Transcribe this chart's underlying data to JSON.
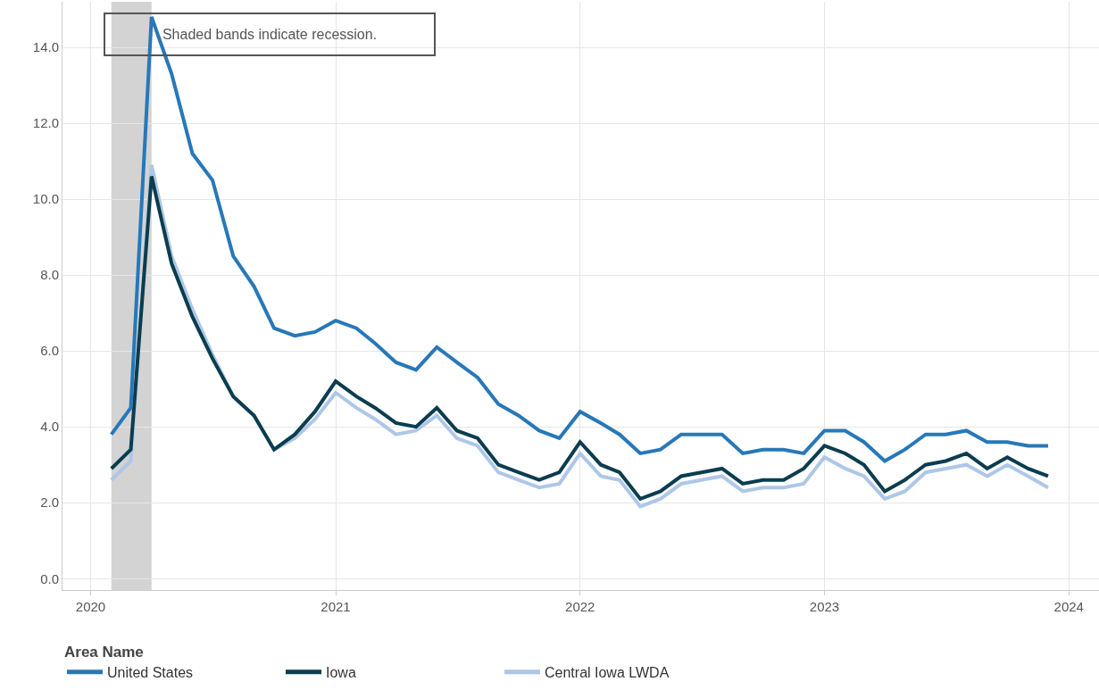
{
  "chart_data": {
    "type": "line",
    "x": [
      "2020-02",
      "2020-03",
      "2020-04",
      "2020-05",
      "2020-06",
      "2020-07",
      "2020-08",
      "2020-09",
      "2020-10",
      "2020-11",
      "2020-12",
      "2021-01",
      "2021-02",
      "2021-03",
      "2021-04",
      "2021-05",
      "2021-06",
      "2021-07",
      "2021-08",
      "2021-09",
      "2021-10",
      "2021-11",
      "2021-12",
      "2022-01",
      "2022-02",
      "2022-03",
      "2022-04",
      "2022-05",
      "2022-06",
      "2022-07",
      "2022-08",
      "2022-09",
      "2022-10",
      "2022-11",
      "2022-12",
      "2023-01",
      "2023-02",
      "2023-03",
      "2023-04",
      "2023-05",
      "2023-06",
      "2023-07",
      "2023-08",
      "2023-09",
      "2023-10",
      "2023-11",
      "2023-12"
    ],
    "series": [
      {
        "name": "United States",
        "color": "#2778b8",
        "values": [
          3.8,
          4.5,
          14.8,
          13.3,
          11.2,
          10.5,
          8.5,
          7.7,
          6.6,
          6.4,
          6.5,
          6.8,
          6.6,
          6.2,
          5.7,
          5.5,
          6.1,
          5.7,
          5.3,
          4.6,
          4.3,
          3.9,
          3.7,
          4.4,
          4.1,
          3.8,
          3.3,
          3.4,
          3.8,
          3.8,
          3.8,
          3.3,
          3.4,
          3.4,
          3.3,
          3.9,
          3.9,
          3.6,
          3.1,
          3.4,
          3.8,
          3.8,
          3.9,
          3.6,
          3.6,
          3.5,
          3.5
        ]
      },
      {
        "name": "Iowa",
        "color": "#0b3d4f",
        "values": [
          2.9,
          3.4,
          10.6,
          8.3,
          6.9,
          5.8,
          4.8,
          4.3,
          3.4,
          3.8,
          4.4,
          5.2,
          4.8,
          4.5,
          4.1,
          4.0,
          4.5,
          3.9,
          3.7,
          3.0,
          2.8,
          2.6,
          2.8,
          3.6,
          3.0,
          2.8,
          2.1,
          2.3,
          2.7,
          2.8,
          2.9,
          2.5,
          2.6,
          2.6,
          2.9,
          3.5,
          3.3,
          3.0,
          2.3,
          2.6,
          3.0,
          3.1,
          3.3,
          2.9,
          3.2,
          2.9,
          2.7
        ]
      },
      {
        "name": "Central Iowa LWDA",
        "color": "#aec7e8",
        "values": [
          2.6,
          3.1,
          10.9,
          8.5,
          7.1,
          5.9,
          4.8,
          4.3,
          3.4,
          3.7,
          4.2,
          4.9,
          4.5,
          4.2,
          3.8,
          3.9,
          4.3,
          3.7,
          3.5,
          2.8,
          2.6,
          2.4,
          2.5,
          3.3,
          2.7,
          2.6,
          1.9,
          2.1,
          2.5,
          2.6,
          2.7,
          2.3,
          2.4,
          2.4,
          2.5,
          3.2,
          2.9,
          2.7,
          2.1,
          2.3,
          2.8,
          2.9,
          3.0,
          2.7,
          3.0,
          2.7,
          2.4
        ]
      }
    ],
    "legend_title": "Area Name",
    "legend": "bottom left",
    "annotations": [
      "Shaded bands indicate recession."
    ],
    "bands": [
      {
        "axis": "x",
        "from": "2020-02-01",
        "to": "2020-04-01",
        "color": "#d3d3d3"
      }
    ],
    "xlim": [
      "2019-11-20",
      "2024-02-15"
    ],
    "xticks": [
      {
        "value": "2020",
        "label": "2020"
      },
      {
        "value": "2021",
        "label": "2021"
      },
      {
        "value": "2022",
        "label": "2022"
      },
      {
        "value": "2023",
        "label": "2023"
      },
      {
        "value": "2024",
        "label": "2024"
      }
    ],
    "ylim": [
      -0.3,
      15.2
    ],
    "yticks": [
      {
        "value": 0,
        "label": "0.0"
      },
      {
        "value": 2,
        "label": "2.0"
      },
      {
        "value": 4,
        "label": "4.0"
      },
      {
        "value": 6,
        "label": "6.0"
      },
      {
        "value": 8,
        "label": "8.0"
      },
      {
        "value": 10,
        "label": "10.0"
      },
      {
        "value": 12,
        "label": "12.0"
      },
      {
        "value": 14,
        "label": "14.0"
      }
    ],
    "grid": true,
    "marker": "none",
    "line_style": "solid"
  }
}
